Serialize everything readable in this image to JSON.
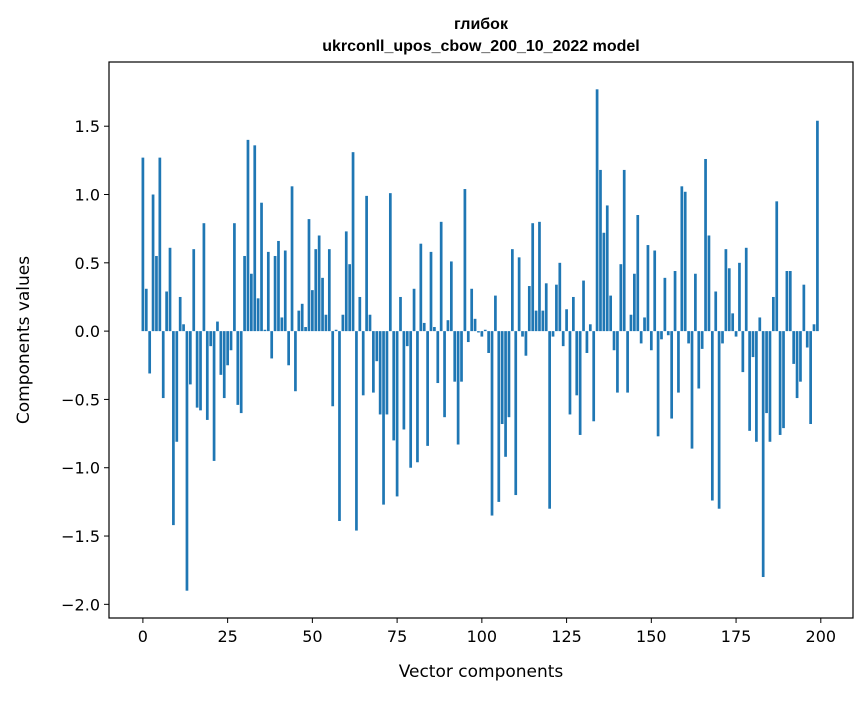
{
  "chart_data": {
    "type": "bar",
    "title_line1": "глибок",
    "title_line2": "ukrconll_upos_cbow_200_10_2022 model",
    "xlabel": "Vector components",
    "ylabel": "Components values",
    "xlim": [
      -10,
      209.5
    ],
    "ylim": [
      -2.1,
      1.97
    ],
    "xticks": [
      0,
      25,
      50,
      75,
      100,
      125,
      150,
      175,
      200
    ],
    "xtick_labels": [
      "0",
      "25",
      "50",
      "75",
      "100",
      "125",
      "150",
      "175",
      "200"
    ],
    "yticks": [
      -2.0,
      -1.5,
      -1.0,
      -0.5,
      0.0,
      0.5,
      1.0,
      1.5
    ],
    "ytick_labels": [
      "−2.0",
      "−1.5",
      "−1.0",
      "−0.5",
      "0.0",
      "0.5",
      "1.0",
      "1.5"
    ],
    "bar_color": "#1f77b4",
    "grid": false,
    "values": [
      1.27,
      0.31,
      -0.31,
      1.0,
      0.55,
      1.27,
      -0.49,
      0.29,
      0.61,
      -1.42,
      -0.81,
      0.25,
      0.05,
      -1.9,
      -0.39,
      0.6,
      -0.56,
      -0.58,
      0.79,
      -0.65,
      -0.11,
      -0.95,
      0.07,
      -0.32,
      -0.49,
      -0.25,
      -0.14,
      0.79,
      -0.54,
      -0.6,
      0.55,
      1.4,
      0.42,
      1.36,
      0.24,
      0.94,
      0.01,
      0.58,
      -0.2,
      0.55,
      0.66,
      0.1,
      0.59,
      -0.25,
      1.06,
      -0.44,
      0.15,
      0.2,
      0.03,
      0.82,
      0.3,
      0.6,
      0.7,
      0.39,
      0.12,
      0.6,
      -0.55,
      0.01,
      -1.39,
      0.12,
      0.73,
      0.49,
      1.31,
      -1.46,
      0.25,
      -0.47,
      0.99,
      0.12,
      -0.45,
      -0.22,
      -0.61,
      -1.27,
      -0.61,
      1.01,
      -0.8,
      -1.21,
      0.25,
      -0.72,
      -0.11,
      -1.0,
      0.31,
      -0.96,
      0.64,
      0.06,
      -0.84,
      0.58,
      0.03,
      -0.38,
      0.8,
      -0.63,
      0.08,
      0.51,
      -0.37,
      -0.83,
      -0.37,
      1.04,
      -0.08,
      0.31,
      0.09,
      -0.01,
      -0.04,
      0.01,
      -0.16,
      -1.35,
      0.26,
      -1.25,
      -0.68,
      -0.92,
      -0.63,
      0.6,
      -1.2,
      0.54,
      -0.04,
      -0.18,
      0.33,
      0.79,
      0.15,
      0.8,
      0.15,
      0.35,
      -1.3,
      -0.04,
      0.34,
      0.5,
      -0.11,
      0.16,
      -0.61,
      0.25,
      -0.47,
      -0.76,
      0.37,
      -0.16,
      0.05,
      -0.66,
      1.77,
      1.18,
      0.72,
      0.92,
      0.26,
      -0.14,
      -0.45,
      0.49,
      1.18,
      -0.45,
      0.12,
      0.42,
      0.85,
      -0.09,
      0.1,
      0.63,
      -0.14,
      0.59,
      -0.77,
      -0.06,
      0.39,
      -0.03,
      -0.64,
      0.44,
      -0.45,
      1.06,
      1.02,
      -0.09,
      -0.86,
      0.42,
      -0.42,
      -0.13,
      1.26,
      0.7,
      -1.24,
      0.29,
      -1.3,
      -0.09,
      0.6,
      0.46,
      0.13,
      -0.04,
      0.5,
      -0.3,
      0.61,
      -0.73,
      -0.19,
      -0.81,
      0.1,
      -1.8,
      -0.6,
      -0.81,
      0.25,
      0.95,
      -0.76,
      -0.71,
      0.44,
      0.44,
      -0.24,
      -0.49,
      -0.37,
      0.34,
      -0.12,
      -0.68,
      0.05,
      1.54
    ]
  }
}
